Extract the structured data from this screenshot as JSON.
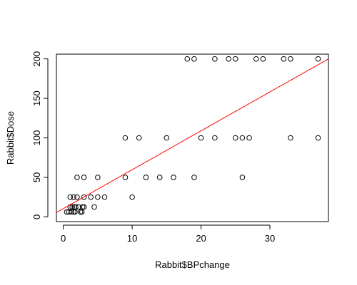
{
  "chart_data": {
    "type": "scatter",
    "xlabel": "Rabbit$BPchange",
    "ylabel": "Rabbit$Dose",
    "xlim": [
      -1.0,
      38.5
    ],
    "ylim": [
      -6,
      206
    ],
    "x_ticks": [
      0,
      10,
      20,
      30
    ],
    "y_ticks": [
      0,
      50,
      100,
      150,
      200
    ],
    "grid": false,
    "colors": {
      "points": "#000000",
      "fit_line": "#ff0000",
      "axes": "#000000"
    },
    "fit_line": {
      "x": [
        -1.0,
        38.5
      ],
      "y": [
        5.5,
        200.0
      ]
    },
    "points": [
      {
        "x": 0.5,
        "y": 6.25
      },
      {
        "x": 0.8,
        "y": 6.25
      },
      {
        "x": 1.0,
        "y": 12.5
      },
      {
        "x": 1.2,
        "y": 6.25
      },
      {
        "x": 1.3,
        "y": 12.5
      },
      {
        "x": 1.5,
        "y": 6.25
      },
      {
        "x": 1.6,
        "y": 12.5
      },
      {
        "x": 1.7,
        "y": 6.25
      },
      {
        "x": 1.8,
        "y": 12.5
      },
      {
        "x": 2.5,
        "y": 6.25
      },
      {
        "x": 2.7,
        "y": 6.25
      },
      {
        "x": 2.2,
        "y": 12.5
      },
      {
        "x": 2.8,
        "y": 12.5
      },
      {
        "x": 3.0,
        "y": 12.5
      },
      {
        "x": 4.5,
        "y": 12.5
      },
      {
        "x": 1.0,
        "y": 25
      },
      {
        "x": 1.5,
        "y": 25
      },
      {
        "x": 2.0,
        "y": 25
      },
      {
        "x": 3.0,
        "y": 25
      },
      {
        "x": 4.0,
        "y": 25
      },
      {
        "x": 5.0,
        "y": 25
      },
      {
        "x": 6.0,
        "y": 25
      },
      {
        "x": 10.0,
        "y": 25
      },
      {
        "x": 2.0,
        "y": 50
      },
      {
        "x": 3.0,
        "y": 50
      },
      {
        "x": 5.0,
        "y": 50
      },
      {
        "x": 9.0,
        "y": 50
      },
      {
        "x": 12.0,
        "y": 50
      },
      {
        "x": 14.0,
        "y": 50
      },
      {
        "x": 16.0,
        "y": 50
      },
      {
        "x": 19.0,
        "y": 50
      },
      {
        "x": 26.0,
        "y": 50
      },
      {
        "x": 9.0,
        "y": 100
      },
      {
        "x": 11.0,
        "y": 100
      },
      {
        "x": 15.0,
        "y": 100
      },
      {
        "x": 20.0,
        "y": 100
      },
      {
        "x": 22.0,
        "y": 100
      },
      {
        "x": 25.0,
        "y": 100
      },
      {
        "x": 26.0,
        "y": 100
      },
      {
        "x": 27.0,
        "y": 100
      },
      {
        "x": 33.0,
        "y": 100
      },
      {
        "x": 37.0,
        "y": 100
      },
      {
        "x": 18.0,
        "y": 200
      },
      {
        "x": 19.0,
        "y": 200
      },
      {
        "x": 22.0,
        "y": 200
      },
      {
        "x": 24.0,
        "y": 200
      },
      {
        "x": 25.0,
        "y": 200
      },
      {
        "x": 28.0,
        "y": 200
      },
      {
        "x": 29.0,
        "y": 200
      },
      {
        "x": 32.0,
        "y": 200
      },
      {
        "x": 33.0,
        "y": 200
      },
      {
        "x": 37.0,
        "y": 200
      }
    ]
  }
}
